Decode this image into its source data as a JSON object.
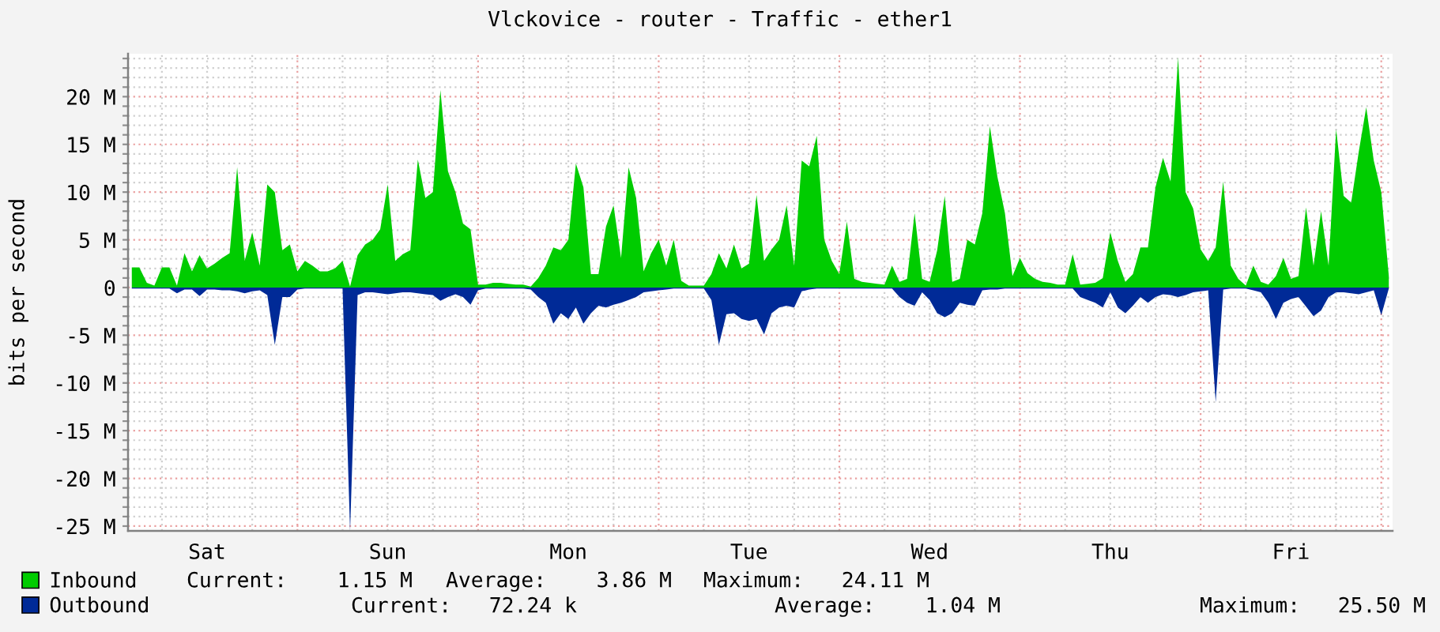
{
  "chart_data": {
    "type": "area",
    "title": "Vlckovice - router - Traffic - ether1",
    "ylabel": "bits per second",
    "categories": [
      null,
      null,
      null,
      null,
      null,
      null,
      null,
      null,
      null,
      null,
      "Sat",
      null,
      null,
      null,
      null,
      null,
      null,
      null,
      null,
      null,
      null,
      null,
      null,
      null,
      null,
      null,
      null,
      null,
      null,
      null,
      null,
      null,
      null,
      null,
      "Sun",
      null,
      null,
      null,
      null,
      null,
      null,
      null,
      null,
      null,
      null,
      null,
      null,
      null,
      null,
      null,
      null,
      null,
      null,
      null,
      null,
      null,
      null,
      null,
      "Mon",
      null,
      null,
      null,
      null,
      null,
      null,
      null,
      null,
      null,
      null,
      null,
      null,
      null,
      null,
      null,
      null,
      null,
      null,
      null,
      null,
      null,
      null,
      null,
      "Tue",
      null,
      null,
      null,
      null,
      null,
      null,
      null,
      null,
      null,
      null,
      null,
      null,
      null,
      null,
      null,
      null,
      null,
      null,
      null,
      null,
      null,
      null,
      null,
      "Wed",
      null,
      null,
      null,
      null,
      null,
      null,
      null,
      null,
      null,
      null,
      null,
      null,
      null,
      null,
      null,
      null,
      null,
      null,
      null,
      null,
      null,
      null,
      null,
      "Thu",
      null,
      null,
      null,
      null,
      null,
      null,
      null,
      null,
      null,
      null,
      null,
      null,
      null,
      null,
      null,
      null,
      null,
      null,
      null,
      null,
      null,
      null,
      null,
      "Fri",
      null,
      null,
      null,
      null,
      null,
      null,
      null,
      null,
      null,
      null,
      null,
      null,
      null
    ],
    "ylim": [
      -25.5,
      24.5
    ],
    "yticks": [
      {
        "value": -25,
        "label": "-25 M"
      },
      {
        "value": -24,
        "label": null
      },
      {
        "value": -23,
        "label": null
      },
      {
        "value": -22,
        "label": null
      },
      {
        "value": -21,
        "label": null
      },
      {
        "value": -20,
        "label": "-20 M"
      },
      {
        "value": -19,
        "label": null
      },
      {
        "value": -18,
        "label": null
      },
      {
        "value": -17,
        "label": null
      },
      {
        "value": -16,
        "label": null
      },
      {
        "value": -15,
        "label": "-15 M"
      },
      {
        "value": -14,
        "label": null
      },
      {
        "value": -13,
        "label": null
      },
      {
        "value": -12,
        "label": null
      },
      {
        "value": -11,
        "label": null
      },
      {
        "value": -10,
        "label": "-10 M"
      },
      {
        "value": -9,
        "label": null
      },
      {
        "value": -8,
        "label": null
      },
      {
        "value": -7,
        "label": null
      },
      {
        "value": -6,
        "label": null
      },
      {
        "value": -5,
        "label": "-5 M"
      },
      {
        "value": -4,
        "label": null
      },
      {
        "value": -3,
        "label": null
      },
      {
        "value": -2,
        "label": null
      },
      {
        "value": -1,
        "label": null
      },
      0,
      {
        "value": 1,
        "label": null
      },
      {
        "value": 2,
        "label": null
      },
      {
        "value": 3,
        "label": null
      },
      {
        "value": 4,
        "label": null
      },
      {
        "value": 5,
        "label": "5 M"
      },
      {
        "value": 6,
        "label": null
      },
      {
        "value": 7,
        "label": null
      },
      {
        "value": 8,
        "label": null
      },
      {
        "value": 9,
        "label": null
      },
      {
        "value": 10,
        "label": "10 M"
      },
      {
        "value": 11,
        "label": null
      },
      {
        "value": 12,
        "label": null
      },
      {
        "value": 13,
        "label": null
      },
      {
        "value": 14,
        "label": null
      },
      {
        "value": 15,
        "label": "15 M"
      },
      {
        "value": 16,
        "label": null
      },
      {
        "value": 17,
        "label": null
      },
      {
        "value": 18,
        "label": null
      },
      {
        "value": 19,
        "label": null
      },
      {
        "value": 20,
        "label": "20 M"
      },
      {
        "value": 21,
        "label": null
      },
      {
        "value": 22,
        "label": null
      },
      {
        "value": 23,
        "label": null
      },
      {
        "value": 24,
        "label": null
      }
    ],
    "grid": true,
    "legend": "bottom",
    "annotations": [
      "Current:    1.15 M",
      "Average:    3.86 M",
      "Maximum:   24.11 M",
      "Current:   72.24 k",
      "Average:    1.04 M",
      "Maximum:   25.50 M"
    ],
    "series": [
      {
        "name": "Inbound",
        "color": "#00cc00",
        "values": [
          2.1,
          2.1,
          0.5,
          0.2,
          2.1,
          2.1,
          0.2,
          3.6,
          1.7,
          3.4,
          2.0,
          2.5,
          3.1,
          3.6,
          12.6,
          2.8,
          5.8,
          2.3,
          10.8,
          10.0,
          3.9,
          4.5,
          1.7,
          2.8,
          2.3,
          1.7,
          1.7,
          2.0,
          2.8,
          0.1,
          3.4,
          4.5,
          5.0,
          6.1,
          10.8,
          2.8,
          3.5,
          3.9,
          13.4,
          9.4,
          10.0,
          20.7,
          12.2,
          10.0,
          6.7,
          6.1,
          0.3,
          0.3,
          0.5,
          0.5,
          0.4,
          0.3,
          0.3,
          0.1,
          1.0,
          2.3,
          4.2,
          3.9,
          5.0,
          13.0,
          10.5,
          1.4,
          1.4,
          6.4,
          8.6,
          3.1,
          12.6,
          9.4,
          1.7,
          3.6,
          5.0,
          2.3,
          5.0,
          0.7,
          0.2,
          0.2,
          0.2,
          1.4,
          3.6,
          2.0,
          4.5,
          2.0,
          2.5,
          9.7,
          2.8,
          4.0,
          5.0,
          8.6,
          2.3,
          13.3,
          12.7,
          15.9,
          5.0,
          2.8,
          1.4,
          6.9,
          0.9,
          0.6,
          0.5,
          0.4,
          0.3,
          2.3,
          0.6,
          0.9,
          7.8,
          0.9,
          0.6,
          3.9,
          9.6,
          0.6,
          0.9,
          5.0,
          4.5,
          7.8,
          16.9,
          11.6,
          7.8,
          1.2,
          3.1,
          1.5,
          0.9,
          0.6,
          0.5,
          0.3,
          0.3,
          3.5,
          0.3,
          0.4,
          0.5,
          1.0,
          5.8,
          2.8,
          0.6,
          1.4,
          4.2,
          4.2,
          10.5,
          13.6,
          11.1,
          24.1,
          10.0,
          8.3,
          4.0,
          2.8,
          4.2,
          11.1,
          2.3,
          0.9,
          0.2,
          2.3,
          0.6,
          0.3,
          1.2,
          3.1,
          0.9,
          1.2,
          8.4,
          2.3,
          8.0,
          2.3,
          16.6,
          9.6,
          8.9,
          14.2,
          18.9,
          13.3,
          10.0,
          1.2
        ]
      },
      {
        "name": "Outbound",
        "color": "#002a97",
        "values": [
          -0.1,
          -0.1,
          -0.1,
          -0.1,
          -0.1,
          -0.1,
          -0.6,
          -0.2,
          -0.2,
          -0.9,
          -0.2,
          -0.2,
          -0.3,
          -0.3,
          -0.4,
          -0.6,
          -0.4,
          -0.3,
          -0.8,
          -6.0,
          -1.0,
          -1.0,
          -0.2,
          -0.1,
          -0.1,
          -0.1,
          -0.1,
          -0.1,
          -0.1,
          -25.5,
          -0.8,
          -0.5,
          -0.5,
          -0.6,
          -0.7,
          -0.6,
          -0.5,
          -0.5,
          -0.6,
          -0.7,
          -0.8,
          -1.4,
          -1.0,
          -0.7,
          -1.0,
          -1.8,
          -0.3,
          -0.1,
          -0.1,
          -0.1,
          -0.1,
          -0.1,
          -0.1,
          -0.2,
          -1.0,
          -1.6,
          -3.8,
          -2.7,
          -3.3,
          -2.1,
          -3.8,
          -2.7,
          -1.9,
          -2.1,
          -1.8,
          -1.6,
          -1.3,
          -1.0,
          -0.5,
          -0.4,
          -0.3,
          -0.2,
          -0.1,
          -0.1,
          -0.1,
          -0.1,
          -0.1,
          -1.3,
          -6.0,
          -2.8,
          -2.7,
          -3.3,
          -3.5,
          -3.3,
          -4.9,
          -2.7,
          -2.1,
          -1.9,
          -2.1,
          -0.4,
          -0.2,
          -0.1,
          -0.1,
          -0.1,
          -0.1,
          -0.1,
          -0.1,
          -0.1,
          -0.1,
          -0.1,
          -0.1,
          -0.1,
          -1.0,
          -1.6,
          -1.9,
          -0.5,
          -1.3,
          -2.7,
          -3.1,
          -2.7,
          -1.6,
          -1.8,
          -1.9,
          -0.3,
          -0.2,
          -0.2,
          -0.1,
          -0.1,
          -0.1,
          -0.1,
          -0.1,
          -0.1,
          -0.1,
          -0.1,
          -0.1,
          -0.1,
          -1.0,
          -1.3,
          -1.6,
          -2.1,
          -0.5,
          -2.1,
          -2.7,
          -1.9,
          -1.0,
          -1.6,
          -1.0,
          -0.7,
          -0.8,
          -1.0,
          -0.8,
          -0.5,
          -0.4,
          -0.3,
          -12.0,
          -0.2,
          -0.1,
          -0.1,
          -0.1,
          -0.3,
          -0.5,
          -1.6,
          -3.3,
          -1.6,
          -1.2,
          -1.0,
          -2.0,
          -3.0,
          -2.4,
          -1.0,
          -0.5,
          -0.5,
          -0.6,
          -0.7,
          -0.5,
          -0.3,
          -2.9,
          -0.1
        ]
      }
    ]
  }
}
